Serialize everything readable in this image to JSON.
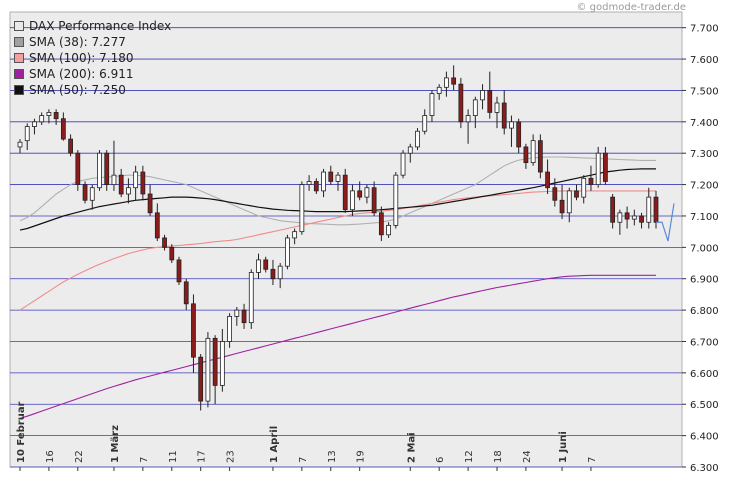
{
  "watermark": "© godmode-trader.de",
  "legend": [
    {
      "label": "DAX Performance Index",
      "swatch": "#e8e8e8"
    },
    {
      "label": "SMA (38): 7.277",
      "swatch": "#a0a0a0"
    },
    {
      "label": "SMA (100): 7.180",
      "swatch": "#f4a0a0"
    },
    {
      "label": "SMA (200): 6.911",
      "swatch": "#a020a0"
    },
    {
      "label": "SMA (50): 7.250",
      "swatch": "#111111"
    }
  ],
  "colors": {
    "plot_bg": "#ececec",
    "gridline": "#3b3bb8",
    "up_candle": "#ffffff",
    "down_candle": "#8b1c1c",
    "sma38": "#b0b0b0",
    "sma100": "#f08c8c",
    "sma200": "#a020a0",
    "sma50": "#111111",
    "projection": "#5a8ad8"
  },
  "chart_data": {
    "type": "candlestick",
    "title": "",
    "ylim": [
      6300,
      7750
    ],
    "yticks": [
      "7.700",
      "7.600",
      "7.500",
      "7.400",
      "7.300",
      "7.200",
      "7.100",
      "7.000",
      "6.900",
      "6.800",
      "6.700",
      "6.600",
      "6.500",
      "6.400",
      "6.300"
    ],
    "ytick_values": [
      7700,
      7600,
      7500,
      7400,
      7300,
      7200,
      7100,
      7000,
      6900,
      6800,
      6700,
      6600,
      6500,
      6400,
      6300
    ],
    "xticks": [
      {
        "label": "10 Februar",
        "index": 0,
        "month": true
      },
      {
        "label": "16",
        "index": 4,
        "month": false
      },
      {
        "label": "22",
        "index": 8,
        "month": false
      },
      {
        "label": "1 März",
        "index": 13,
        "month": true
      },
      {
        "label": "7",
        "index": 17,
        "month": false
      },
      {
        "label": "11",
        "index": 21,
        "month": false
      },
      {
        "label": "17",
        "index": 25,
        "month": false
      },
      {
        "label": "23",
        "index": 29,
        "month": false
      },
      {
        "label": "1 April",
        "index": 35,
        "month": true
      },
      {
        "label": "7",
        "index": 39,
        "month": false
      },
      {
        "label": "13",
        "index": 43,
        "month": false
      },
      {
        "label": "19",
        "index": 47,
        "month": false
      },
      {
        "label": "2 Mai",
        "index": 54,
        "month": true
      },
      {
        "label": "6",
        "index": 58,
        "month": false
      },
      {
        "label": "12",
        "index": 62,
        "month": false
      },
      {
        "label": "18",
        "index": 66,
        "month": false
      },
      {
        "label": "24",
        "index": 70,
        "month": false
      },
      {
        "label": "1 Juni",
        "index": 75,
        "month": true
      },
      {
        "label": "7",
        "index": 79,
        "month": false
      }
    ],
    "candles": [
      [
        7320,
        7345,
        7300,
        7335
      ],
      [
        7340,
        7395,
        7310,
        7385
      ],
      [
        7385,
        7410,
        7360,
        7400
      ],
      [
        7400,
        7430,
        7390,
        7420
      ],
      [
        7420,
        7440,
        7395,
        7430
      ],
      [
        7430,
        7440,
        7390,
        7410
      ],
      [
        7410,
        7430,
        7340,
        7345
      ],
      [
        7345,
        7360,
        7290,
        7300
      ],
      [
        7300,
        7310,
        7180,
        7200
      ],
      [
        7200,
        7210,
        7140,
        7150
      ],
      [
        7150,
        7200,
        7120,
        7190
      ],
      [
        7190,
        7310,
        7180,
        7300
      ],
      [
        7300,
        7310,
        7180,
        7200
      ],
      [
        7200,
        7340,
        7180,
        7230
      ],
      [
        7230,
        7250,
        7160,
        7170
      ],
      [
        7170,
        7220,
        7140,
        7190
      ],
      [
        7190,
        7260,
        7150,
        7240
      ],
      [
        7240,
        7260,
        7150,
        7170
      ],
      [
        7170,
        7200,
        7100,
        7110
      ],
      [
        7110,
        7140,
        7020,
        7030
      ],
      [
        7030,
        7040,
        6990,
        7000
      ],
      [
        7000,
        7010,
        6950,
        6960
      ],
      [
        6960,
        6970,
        6880,
        6890
      ],
      [
        6890,
        6900,
        6800,
        6820
      ],
      [
        6820,
        6850,
        6600,
        6650
      ],
      [
        6650,
        6660,
        6480,
        6510
      ],
      [
        6510,
        6730,
        6490,
        6710
      ],
      [
        6710,
        6720,
        6500,
        6560
      ],
      [
        6560,
        6740,
        6540,
        6700
      ],
      [
        6700,
        6790,
        6680,
        6780
      ],
      [
        6780,
        6810,
        6750,
        6800
      ],
      [
        6800,
        6820,
        6740,
        6760
      ],
      [
        6760,
        6930,
        6740,
        6920
      ],
      [
        6920,
        6980,
        6900,
        6960
      ],
      [
        6960,
        6970,
        6920,
        6930
      ],
      [
        6930,
        6960,
        6880,
        6900
      ],
      [
        6900,
        6950,
        6870,
        6940
      ],
      [
        6940,
        7040,
        6930,
        7030
      ],
      [
        7030,
        7060,
        7010,
        7050
      ],
      [
        7050,
        7210,
        7040,
        7200
      ],
      [
        7200,
        7230,
        7180,
        7210
      ],
      [
        7210,
        7220,
        7170,
        7180
      ],
      [
        7180,
        7250,
        7160,
        7240
      ],
      [
        7240,
        7260,
        7200,
        7210
      ],
      [
        7210,
        7240,
        7180,
        7230
      ],
      [
        7230,
        7250,
        7110,
        7120
      ],
      [
        7120,
        7200,
        7100,
        7180
      ],
      [
        7180,
        7210,
        7150,
        7160
      ],
      [
        7160,
        7200,
        7140,
        7190
      ],
      [
        7190,
        7210,
        7100,
        7110
      ],
      [
        7110,
        7130,
        7020,
        7040
      ],
      [
        7040,
        7080,
        7030,
        7070
      ],
      [
        7070,
        7240,
        7060,
        7230
      ],
      [
        7230,
        7310,
        7220,
        7300
      ],
      [
        7300,
        7330,
        7270,
        7320
      ],
      [
        7320,
        7380,
        7310,
        7370
      ],
      [
        7370,
        7440,
        7360,
        7420
      ],
      [
        7420,
        7500,
        7400,
        7490
      ],
      [
        7490,
        7520,
        7470,
        7510
      ],
      [
        7510,
        7560,
        7480,
        7540
      ],
      [
        7540,
        7580,
        7500,
        7520
      ],
      [
        7520,
        7540,
        7380,
        7400
      ],
      [
        7400,
        7440,
        7330,
        7420
      ],
      [
        7420,
        7480,
        7380,
        7470
      ],
      [
        7470,
        7520,
        7440,
        7500
      ],
      [
        7500,
        7560,
        7410,
        7430
      ],
      [
        7430,
        7480,
        7380,
        7460
      ],
      [
        7460,
        7500,
        7360,
        7380
      ],
      [
        7380,
        7420,
        7320,
        7400
      ],
      [
        7400,
        7410,
        7300,
        7320
      ],
      [
        7320,
        7330,
        7250,
        7270
      ],
      [
        7270,
        7360,
        7260,
        7340
      ],
      [
        7340,
        7360,
        7220,
        7240
      ],
      [
        7240,
        7280,
        7170,
        7190
      ],
      [
        7190,
        7220,
        7130,
        7150
      ],
      [
        7150,
        7200,
        7090,
        7110
      ],
      [
        7110,
        7190,
        7080,
        7180
      ],
      [
        7180,
        7200,
        7150,
        7160
      ],
      [
        7160,
        7230,
        7140,
        7220
      ],
      [
        7220,
        7260,
        7180,
        7200
      ],
      [
        7200,
        7320,
        7190,
        7300
      ],
      [
        7300,
        7320,
        7200,
        7210
      ],
      [
        7160,
        7170,
        7060,
        7080
      ],
      [
        7080,
        7120,
        7040,
        7110
      ],
      [
        7110,
        7130,
        7060,
        7090
      ],
      [
        7090,
        7120,
        7070,
        7100
      ],
      [
        7100,
        7110,
        7060,
        7080
      ],
      [
        7080,
        7190,
        7060,
        7160
      ],
      [
        7160,
        7180,
        7060,
        7080
      ]
    ],
    "projection": [
      [
        7080,
        1
      ],
      [
        7020,
        2
      ],
      [
        7140,
        3
      ]
    ],
    "series": [
      {
        "name": "SMA (38): 7.277",
        "color": "#b0b0b0",
        "values": [
          7085,
          7095,
          7110,
          7130,
          7150,
          7170,
          7185,
          7200,
          7210,
          7215,
          7220,
          7222,
          7224,
          7226,
          7228,
          7230,
          7230,
          7228,
          7225,
          7220,
          7215,
          7210,
          7205,
          7200,
          7190,
          7180,
          7170,
          7160,
          7150,
          7140,
          7130,
          7120,
          7110,
          7100,
          7095,
          7090,
          7085,
          7082,
          7080,
          7078,
          7076,
          7075,
          7074,
          7073,
          7072,
          7072,
          7073,
          7074,
          7076,
          7078,
          7080,
          7085,
          7090,
          7100,
          7110,
          7120,
          7130,
          7140,
          7150,
          7160,
          7170,
          7180,
          7190,
          7200,
          7215,
          7230,
          7245,
          7260,
          7270,
          7278,
          7282,
          7285,
          7287,
          7288,
          7288,
          7288,
          7287,
          7286,
          7285,
          7284,
          7283,
          7282,
          7281,
          7280,
          7279,
          7278,
          7277,
          7277,
          7277
        ]
      },
      {
        "name": "SMA (100): 7.180",
        "color": "#f08c8c",
        "values": [
          6800,
          6815,
          6830,
          6845,
          6860,
          6875,
          6890,
          6902,
          6914,
          6925,
          6936,
          6946,
          6955,
          6964,
          6972,
          6980,
          6986,
          6992,
          6997,
          7000,
          7002,
          7004,
          7006,
          7008,
          7010,
          7012,
          7015,
          7018,
          7020,
          7022,
          7025,
          7030,
          7035,
          7040,
          7045,
          7050,
          7055,
          7060,
          7065,
          7070,
          7075,
          7080,
          7085,
          7090,
          7095,
          7100,
          7105,
          7108,
          7110,
          7112,
          7115,
          7118,
          7120,
          7124,
          7128,
          7132,
          7136,
          7140,
          7144,
          7148,
          7152,
          7155,
          7158,
          7160,
          7162,
          7164,
          7166,
          7168,
          7170,
          7172,
          7174,
          7176,
          7177,
          7178,
          7179,
          7180,
          7180,
          7180,
          7180,
          7180,
          7180,
          7180,
          7180,
          7180,
          7180,
          7180,
          7180,
          7180,
          7180
        ]
      },
      {
        "name": "SMA (200): 6.911",
        "color": "#a020a0",
        "values": [
          6455,
          6462,
          6470,
          6478,
          6486,
          6494,
          6502,
          6510,
          6518,
          6526,
          6534,
          6542,
          6550,
          6557,
          6564,
          6571,
          6578,
          6584,
          6590,
          6596,
          6602,
          6608,
          6614,
          6620,
          6626,
          6632,
          6638,
          6644,
          6650,
          6656,
          6662,
          6668,
          6674,
          6680,
          6686,
          6692,
          6698,
          6704,
          6710,
          6716,
          6722,
          6728,
          6734,
          6740,
          6746,
          6752,
          6758,
          6764,
          6770,
          6776,
          6782,
          6788,
          6794,
          6800,
          6806,
          6812,
          6818,
          6824,
          6830,
          6836,
          6842,
          6847,
          6852,
          6857,
          6862,
          6867,
          6872,
          6876,
          6880,
          6884,
          6888,
          6892,
          6896,
          6900,
          6903,
          6906,
          6908,
          6909,
          6910,
          6911,
          6911,
          6911,
          6911,
          6911,
          6911,
          6911,
          6911,
          6911,
          6911
        ]
      },
      {
        "name": "SMA (50): 7.250",
        "color": "#111111",
        "values": [
          7055,
          7060,
          7068,
          7076,
          7084,
          7092,
          7100,
          7106,
          7112,
          7118,
          7124,
          7130,
          7134,
          7138,
          7142,
          7146,
          7150,
          7152,
          7154,
          7156,
          7158,
          7160,
          7160,
          7160,
          7159,
          7157,
          7155,
          7152,
          7148,
          7144,
          7140,
          7136,
          7132,
          7128,
          7125,
          7122,
          7120,
          7118,
          7117,
          7116,
          7115,
          7114,
          7114,
          7114,
          7114,
          7114,
          7115,
          7116,
          7117,
          7118,
          7120,
          7122,
          7124,
          7126,
          7128,
          7130,
          7132,
          7134,
          7138,
          7142,
          7146,
          7150,
          7154,
          7158,
          7162,
          7166,
          7170,
          7174,
          7178,
          7182,
          7186,
          7190,
          7195,
          7200,
          7205,
          7210,
          7215,
          7220,
          7225,
          7230,
          7235,
          7240,
          7243,
          7246,
          7248,
          7249,
          7250,
          7250,
          7250
        ]
      }
    ]
  }
}
